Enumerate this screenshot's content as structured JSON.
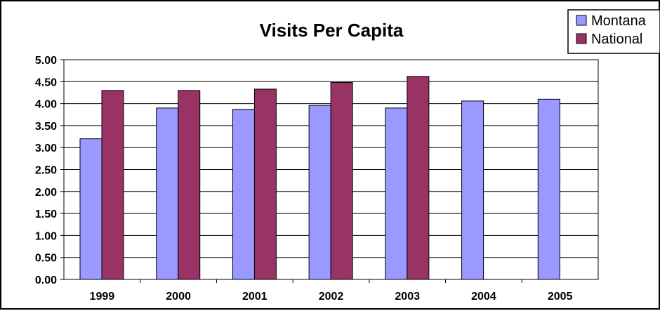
{
  "chart_data": {
    "type": "bar",
    "title": "Visits Per Capita",
    "xlabel": "",
    "ylabel": "",
    "categories": [
      "1999",
      "2000",
      "2001",
      "2002",
      "2003",
      "2004",
      "2005"
    ],
    "series": [
      {
        "name": "Montana",
        "color": "#9999ff",
        "values": [
          3.2,
          3.9,
          3.87,
          3.96,
          3.9,
          4.06,
          4.1
        ]
      },
      {
        "name": "National",
        "color": "#993366",
        "values": [
          4.3,
          4.3,
          4.33,
          4.48,
          4.62,
          null,
          null
        ]
      }
    ],
    "ylim": [
      0,
      5
    ],
    "yticks": [
      "0.00",
      "0.50",
      "1.00",
      "1.50",
      "2.00",
      "2.50",
      "3.00",
      "3.50",
      "4.00",
      "4.50",
      "5.00"
    ],
    "grid": true,
    "legend_position": "top-right"
  }
}
